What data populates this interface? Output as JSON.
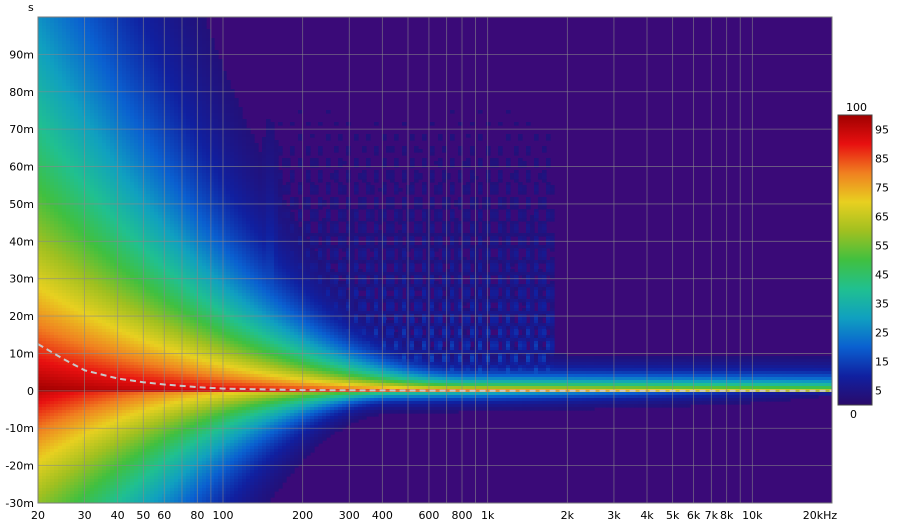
{
  "chart_data": {
    "type": "heatmap",
    "title": "",
    "xlabel": "",
    "ylabel": "",
    "y_unit_label": "s",
    "x_scale": "log",
    "x_range_hz": [
      20,
      20000
    ],
    "y_range_s": [
      -0.03,
      0.1
    ],
    "x_ticks": [
      {
        "value": 20,
        "label": "20"
      },
      {
        "value": 30,
        "label": "30"
      },
      {
        "value": 40,
        "label": "40"
      },
      {
        "value": 50,
        "label": "50"
      },
      {
        "value": 60,
        "label": "60"
      },
      {
        "value": 80,
        "label": "80"
      },
      {
        "value": 100,
        "label": "100"
      },
      {
        "value": 200,
        "label": "200"
      },
      {
        "value": 300,
        "label": "300"
      },
      {
        "value": 400,
        "label": "400"
      },
      {
        "value": 600,
        "label": "600"
      },
      {
        "value": 800,
        "label": "800"
      },
      {
        "value": 1000,
        "label": "1k"
      },
      {
        "value": 2000,
        "label": "2k"
      },
      {
        "value": 3000,
        "label": "3k"
      },
      {
        "value": 4000,
        "label": "4k"
      },
      {
        "value": 5000,
        "label": "5k"
      },
      {
        "value": 6000,
        "label": "6k"
      },
      {
        "value": 7000,
        "label": "7k"
      },
      {
        "value": 8000,
        "label": "8k"
      },
      {
        "value": 10000,
        "label": "10k"
      },
      {
        "value": 20000,
        "label": "20kHz"
      }
    ],
    "y_ticks": [
      {
        "value": 0.09,
        "label": "90m"
      },
      {
        "value": 0.08,
        "label": "80m"
      },
      {
        "value": 0.07,
        "label": "70m"
      },
      {
        "value": 0.06,
        "label": "60m"
      },
      {
        "value": 0.05,
        "label": "50m"
      },
      {
        "value": 0.04,
        "label": "40m"
      },
      {
        "value": 0.03,
        "label": "30m"
      },
      {
        "value": 0.02,
        "label": "20m"
      },
      {
        "value": 0.01,
        "label": "10m"
      },
      {
        "value": 0.0,
        "label": "0"
      },
      {
        "value": -0.01,
        "label": "-10m"
      },
      {
        "value": -0.02,
        "label": "-20m"
      },
      {
        "value": -0.03,
        "label": "-30m"
      }
    ],
    "grid": true,
    "colorbar": {
      "range": [
        0,
        100
      ],
      "top_label": "100",
      "bottom_label": "0",
      "tick_labels": [
        "95",
        "85",
        "75",
        "65",
        "55",
        "45",
        "35",
        "25",
        "15",
        "5"
      ],
      "placement": "right"
    },
    "ridge_line": {
      "style": "dashed",
      "color": "#c8c8c8",
      "points": [
        {
          "x": 20,
          "y": 0.0125
        },
        {
          "x": 25,
          "y": 0.0085
        },
        {
          "x": 30,
          "y": 0.0055
        },
        {
          "x": 40,
          "y": 0.0033
        },
        {
          "x": 50,
          "y": 0.0023
        },
        {
          "x": 60,
          "y": 0.0017
        },
        {
          "x": 80,
          "y": 0.001
        },
        {
          "x": 100,
          "y": 0.0006
        },
        {
          "x": 200,
          "y": 0.0002
        },
        {
          "x": 1000,
          "y": 0.0
        },
        {
          "x": 20000,
          "y": 0.0
        }
      ]
    },
    "regions": [
      {
        "x": [
          20,
          65
        ],
        "y": [
          -0.03,
          0.1
        ],
        "intensity": "high at low freq, decays with time"
      },
      {
        "x": [
          100,
          200
        ],
        "y": [
          0.0,
          0.09
        ],
        "intensity": "blue-cyan streaks"
      },
      {
        "x": [
          130,
          180
        ],
        "y": [
          0.0,
          0.025
        ],
        "intensity": "green-cyan ridge"
      },
      {
        "x": [
          200,
          1500
        ],
        "y": [
          0.0,
          0.05
        ],
        "intensity": "blue ripple pattern"
      },
      {
        "x": [
          300,
          20000
        ],
        "y": [
          -0.002,
          0.002
        ],
        "intensity": "thin cyan band near 0"
      }
    ]
  },
  "colors": {
    "background": "#3a0a78",
    "grid": "#8a8a8a",
    "colormap": [
      "#2a0a6a",
      "#1020a0",
      "#0a60d0",
      "#10a0c0",
      "#20c090",
      "#40c040",
      "#a0c020",
      "#e8d020",
      "#f08020",
      "#e81010",
      "#a00000"
    ]
  }
}
